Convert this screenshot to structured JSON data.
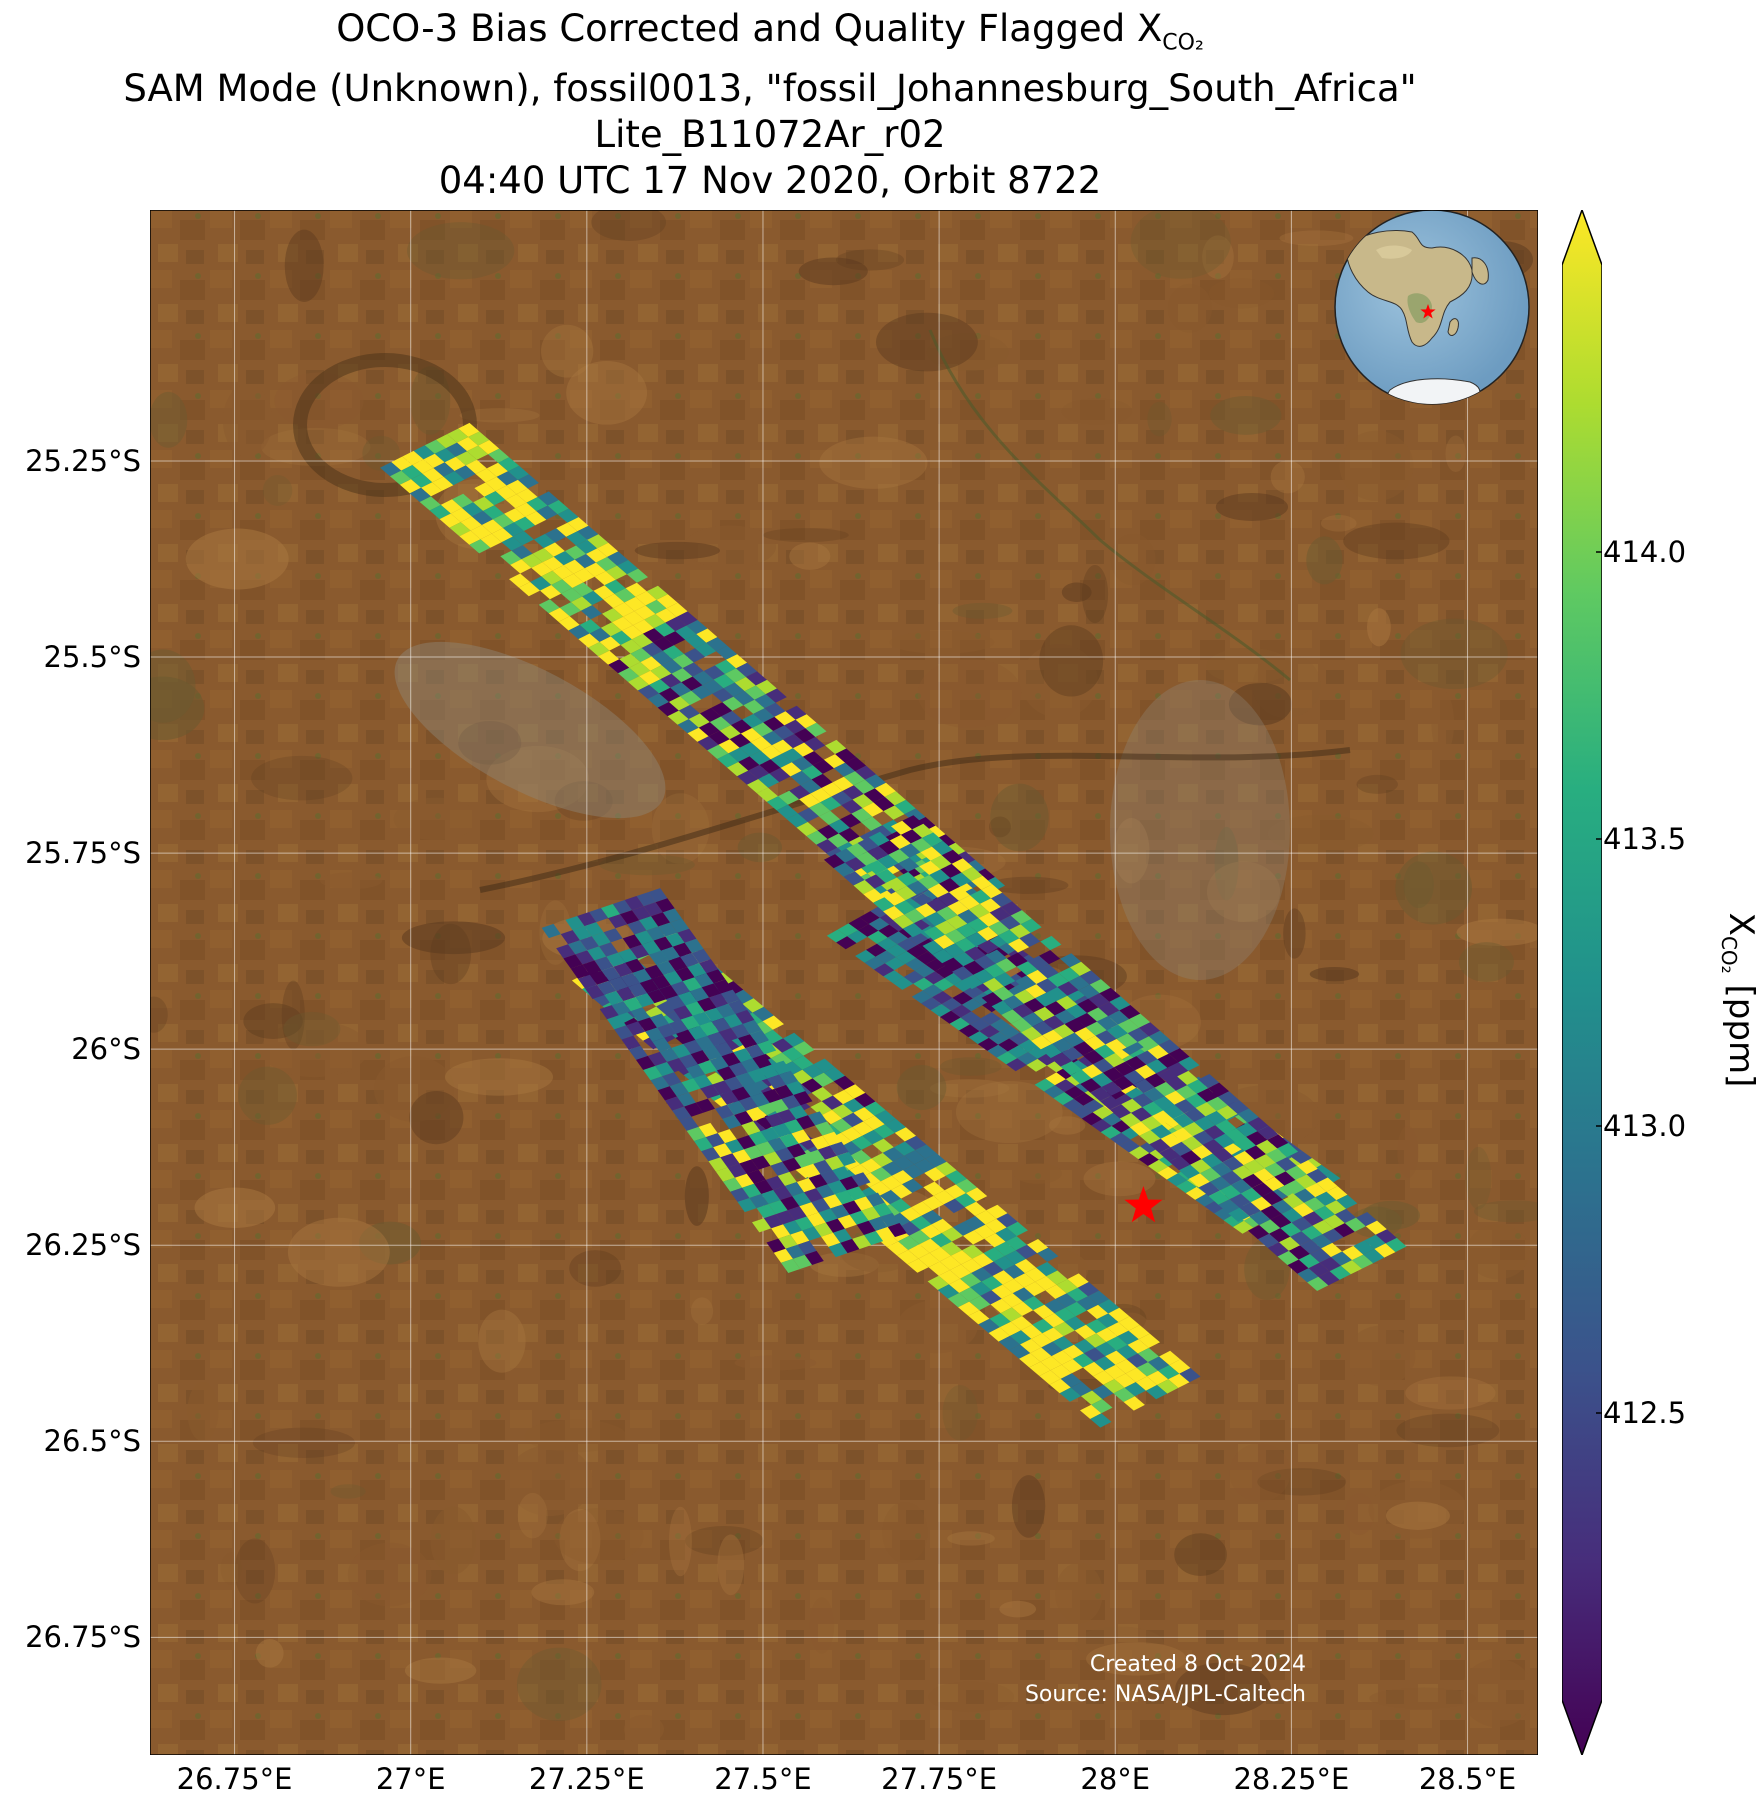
{
  "title": {
    "line1_prefix": "OCO-3 Bias Corrected and Quality Flagged X",
    "line1_sub": "CO₂",
    "line2": "SAM Mode (Unknown), fossil0013, \"fossil_Johannesburg_South_Africa\"",
    "line3": "Lite_B11072Ar_r02",
    "line4": "04:40 UTC 17 Nov 2020, Orbit 8722"
  },
  "credits": {
    "created": "Created 8 Oct 2024",
    "source": "Source: NASA/JPL-Caltech"
  },
  "map": {
    "lon_range": [
      26.63,
      28.6
    ],
    "lat_range": [
      -26.9,
      -24.93
    ],
    "lat_ticks": [
      {
        "value": -25.25,
        "label": "25.25°S"
      },
      {
        "value": -25.5,
        "label": "25.5°S"
      },
      {
        "value": -25.75,
        "label": "25.75°S"
      },
      {
        "value": -26.0,
        "label": "26°S"
      },
      {
        "value": -26.25,
        "label": "26.25°S"
      },
      {
        "value": -26.5,
        "label": "26.5°S"
      },
      {
        "value": -26.75,
        "label": "26.75°S"
      }
    ],
    "lon_ticks": [
      {
        "value": 26.75,
        "label": "26.75°E"
      },
      {
        "value": 27.0,
        "label": "27°E"
      },
      {
        "value": 27.25,
        "label": "27.25°E"
      },
      {
        "value": 27.5,
        "label": "27.5°E"
      },
      {
        "value": 27.75,
        "label": "27.75°E"
      },
      {
        "value": 28.0,
        "label": "28°E"
      },
      {
        "value": 28.25,
        "label": "28.25°E"
      },
      {
        "value": 28.5,
        "label": "28.5°E"
      }
    ],
    "grid": true,
    "background": "satellite imagery",
    "target_marker": {
      "lon": 28.04,
      "lat": -26.2,
      "color": "#ff0000",
      "symbol": "star"
    },
    "inset_globe": {
      "location": "top-right",
      "marker": "red star over South Africa"
    }
  },
  "colorbar": {
    "label_prefix": "X",
    "label_sub": "CO₂",
    "label_suffix": " [ppm]",
    "range": [
      412.0,
      414.5
    ],
    "ticks": [
      {
        "value": 412.5,
        "label": "412.5"
      },
      {
        "value": 413.0,
        "label": "413.0"
      },
      {
        "value": 413.5,
        "label": "413.5"
      },
      {
        "value": 414.0,
        "label": "414.0"
      }
    ],
    "colormap": "viridis",
    "extend": "both"
  },
  "chart_data": {
    "type": "heatmap",
    "title": "OCO-3 Bias Corrected and Quality Flagged XCO2",
    "units": "ppm",
    "value_range": [
      412.0,
      414.5
    ],
    "swaths": [
      {
        "start": {
          "lon": 27.02,
          "lat": -25.23
        },
        "end": {
          "lon": 27.78,
          "lat": -25.82
        },
        "across_cells": 8,
        "along_cells": 54
      },
      {
        "start": {
          "lon": 27.66,
          "lat": -25.82
        },
        "end": {
          "lon": 28.25,
          "lat": -26.2
        },
        "across_cells": 9,
        "along_cells": 44
      },
      {
        "start": {
          "lon": 27.65,
          "lat": -25.73
        },
        "end": {
          "lon": 28.35,
          "lat": -26.28
        },
        "across_cells": 8,
        "along_cells": 50
      },
      {
        "start": {
          "lon": 27.3,
          "lat": -25.88
        },
        "end": {
          "lon": 28.05,
          "lat": -26.45
        },
        "across_cells": 9,
        "along_cells": 52
      },
      {
        "start": {
          "lon": 27.27,
          "lat": -25.82
        },
        "end": {
          "lon": 27.62,
          "lat": -26.26
        },
        "across_cells": 10,
        "along_cells": 34
      }
    ]
  },
  "palette": {
    "viridis": [
      "#440154",
      "#472d7b",
      "#3b528b",
      "#2c728e",
      "#21918c",
      "#28ae80",
      "#5ec962",
      "#addc30",
      "#fde725"
    ],
    "land_base": "#8a5a2e",
    "land_dark": "#5b3a1e",
    "land_light": "#a8763f",
    "urban": "#8e8878"
  }
}
